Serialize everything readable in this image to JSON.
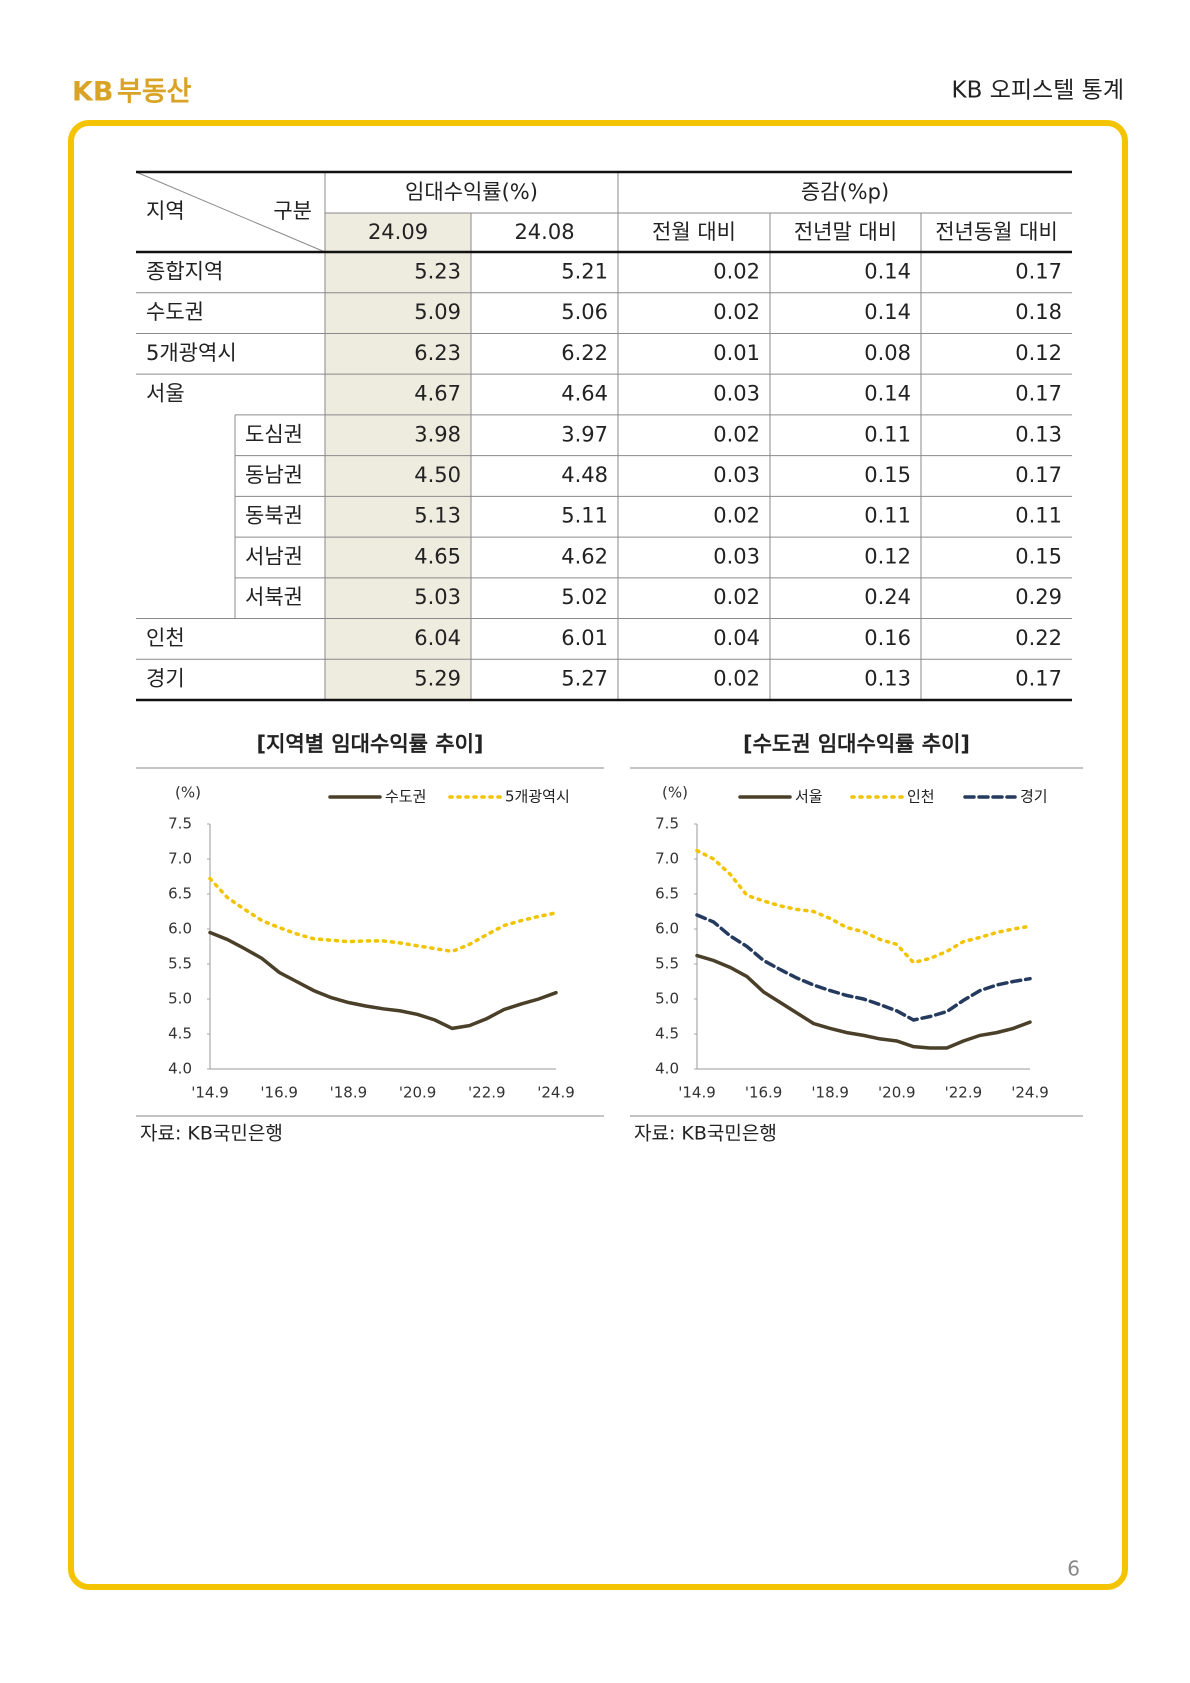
{
  "header": {
    "logo_mark": "KB",
    "logo_text": "부동산",
    "title": "KB 오피스텔 통계"
  },
  "page_number": "6",
  "table": {
    "corner": [
      "지역",
      "구분"
    ],
    "groups": [
      "임대수익률(%)",
      "증감(%p)"
    ],
    "columns": [
      "24.09",
      "24.08",
      "전월 대비",
      "전년말 대비",
      "전년동월 대비"
    ],
    "rows": [
      {
        "label": "종합지역",
        "values": [
          "5.23",
          "5.21",
          "0.02",
          "0.14",
          "0.17"
        ]
      },
      {
        "label": "수도권",
        "values": [
          "5.09",
          "5.06",
          "0.02",
          "0.14",
          "0.18"
        ]
      },
      {
        "label": "5개광역시",
        "values": [
          "6.23",
          "6.22",
          "0.01",
          "0.08",
          "0.12"
        ]
      },
      {
        "label": "서울",
        "values": [
          "4.67",
          "4.64",
          "0.03",
          "0.14",
          "0.17"
        ]
      },
      {
        "label": "도심권",
        "sub": true,
        "values": [
          "3.98",
          "3.97",
          "0.02",
          "0.11",
          "0.13"
        ]
      },
      {
        "label": "동남권",
        "sub": true,
        "values": [
          "4.50",
          "4.48",
          "0.03",
          "0.15",
          "0.17"
        ]
      },
      {
        "label": "동북권",
        "sub": true,
        "values": [
          "5.13",
          "5.11",
          "0.02",
          "0.11",
          "0.11"
        ]
      },
      {
        "label": "서남권",
        "sub": true,
        "values": [
          "4.65",
          "4.62",
          "0.03",
          "0.12",
          "0.15"
        ]
      },
      {
        "label": "서북권",
        "sub": true,
        "values": [
          "5.03",
          "5.02",
          "0.02",
          "0.24",
          "0.29"
        ]
      },
      {
        "label": "인천",
        "values": [
          "6.04",
          "6.01",
          "0.04",
          "0.16",
          "0.22"
        ]
      },
      {
        "label": "경기",
        "values": [
          "5.29",
          "5.27",
          "0.02",
          "0.13",
          "0.17"
        ]
      }
    ]
  },
  "chart_data": [
    {
      "type": "line",
      "title": "[지역별 임대수익률 추이]",
      "y_label": "(%)",
      "source": "자료: KB국민은행",
      "categories": [
        "'14.9",
        null,
        null,
        null,
        "'16.9",
        null,
        null,
        null,
        "'18.9",
        null,
        null,
        null,
        "'20.9",
        null,
        null,
        null,
        "'22.9",
        null,
        null,
        null,
        "'24.9"
      ],
      "ylim": [
        4,
        7.5
      ],
      "yticks": [
        {
          "value": 4,
          "label": "4.0"
        },
        4.5,
        {
          "value": 5,
          "label": "5.0"
        },
        5.5,
        {
          "value": 6,
          "label": "6.0"
        },
        6.5,
        {
          "value": 7,
          "label": "7.0"
        },
        7.5
      ],
      "series": [
        {
          "name": "수도권",
          "color": "#4a3f28",
          "style": "solid",
          "values": [
            5.95,
            5.85,
            5.72,
            5.58,
            5.38,
            5.25,
            5.12,
            5.02,
            4.95,
            4.9,
            4.86,
            4.83,
            4.78,
            4.7,
            4.58,
            4.62,
            4.72,
            4.85,
            4.93,
            5.0,
            5.09
          ]
        },
        {
          "name": "5개광역시",
          "color": "#f2c300",
          "style": "dotted",
          "values": [
            6.72,
            6.45,
            6.28,
            6.12,
            6.02,
            5.93,
            5.86,
            5.84,
            5.82,
            5.83,
            5.83,
            5.8,
            5.76,
            5.72,
            5.68,
            5.78,
            5.92,
            6.05,
            6.12,
            6.18,
            6.23
          ]
        }
      ]
    },
    {
      "type": "line",
      "title": "[수도권 임대수익률 추이]",
      "y_label": "(%)",
      "source": "자료: KB국민은행",
      "categories": [
        "'14.9",
        null,
        null,
        null,
        "'16.9",
        null,
        null,
        null,
        "'18.9",
        null,
        null,
        null,
        "'20.9",
        null,
        null,
        null,
        "'22.9",
        null,
        null,
        null,
        "'24.9"
      ],
      "ylim": [
        4,
        7.5
      ],
      "yticks": [
        {
          "value": 4,
          "label": "4.0"
        },
        4.5,
        {
          "value": 5,
          "label": "5.0"
        },
        5.5,
        {
          "value": 6,
          "label": "6.0"
        },
        6.5,
        {
          "value": 7,
          "label": "7.0"
        },
        7.5
      ],
      "series": [
        {
          "name": "서울",
          "color": "#4a3f28",
          "style": "solid",
          "values": [
            5.62,
            5.55,
            5.45,
            5.32,
            5.1,
            4.95,
            4.8,
            4.65,
            4.58,
            4.52,
            4.48,
            4.43,
            4.4,
            4.32,
            4.3,
            4.3,
            4.4,
            4.48,
            4.52,
            4.58,
            4.67
          ]
        },
        {
          "name": "인천",
          "color": "#f2c300",
          "style": "dotted",
          "values": [
            7.12,
            7.0,
            6.78,
            6.48,
            6.4,
            6.33,
            6.28,
            6.25,
            6.15,
            6.02,
            5.96,
            5.85,
            5.78,
            5.52,
            5.58,
            5.68,
            5.82,
            5.88,
            5.95,
            6.0,
            6.04
          ]
        },
        {
          "name": "경기",
          "color": "#243a5e",
          "style": "dashed",
          "values": [
            6.2,
            6.1,
            5.9,
            5.75,
            5.55,
            5.42,
            5.3,
            5.2,
            5.12,
            5.05,
            5.0,
            4.92,
            4.83,
            4.7,
            4.75,
            4.82,
            4.98,
            5.12,
            5.2,
            5.25,
            5.29
          ]
        }
      ]
    }
  ]
}
